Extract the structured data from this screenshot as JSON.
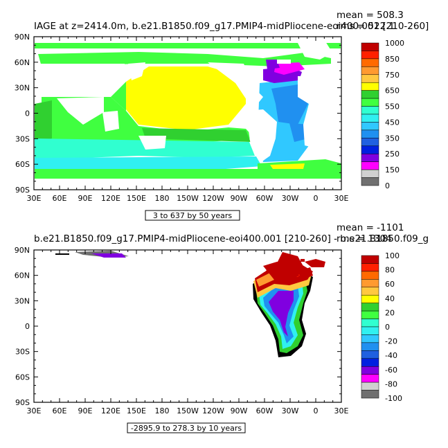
{
  "chart_data": [
    {
      "type": "heatmap",
      "title": "IAGE at z=2414.0m, b.e21.B1850.f09_g17.PMIP4-midPliocene-eoi400.001 [210-260]",
      "stats": {
        "mean": "mean = 508.3",
        "rms": "rms = 522.1"
      },
      "subtitle": "3 to 637 by 50 years",
      "xticks": [
        "30E",
        "60E",
        "90E",
        "120E",
        "150E",
        "180",
        "150W",
        "120W",
        "90W",
        "60W",
        "30W",
        "0",
        "30E"
      ],
      "yticks": [
        "90N",
        "60N",
        "30N",
        "0",
        "30S",
        "60S",
        "90S"
      ],
      "colorbar": {
        "labels": [
          "1000",
          "850",
          "750",
          "650",
          "550",
          "450",
          "350",
          "250",
          "150",
          "0"
        ],
        "colors": [
          "#c00000",
          "#ff2000",
          "#ff6a00",
          "#ff9a30",
          "#ffc840",
          "#ffff00",
          "#30d030",
          "#40ff40",
          "#30ffd0",
          "#30f0f0",
          "#30c8ff",
          "#2090f0",
          "#2060e0",
          "#0020e0",
          "#8000e0",
          "#ff00ff",
          "#d0d0d0",
          "#707070"
        ]
      }
    },
    {
      "type": "heatmap",
      "title": "b.e21.B1850.f09_g17.PMIP4-midPliocene-eoi400.001 [210-260] - b.e21.B1850.f09_g",
      "stats": {
        "mean": "mean = -1101",
        "rms": "rms = 1304"
      },
      "subtitle": "-2895.9 to 278.3 by 10 years",
      "xticks": [
        "30E",
        "60E",
        "90E",
        "120E",
        "150E",
        "180",
        "150W",
        "120W",
        "90W",
        "60W",
        "30W",
        "0",
        "30E"
      ],
      "yticks": [
        "90N",
        "60N",
        "30N",
        "0",
        "30S",
        "60S",
        "90S"
      ],
      "colorbar": {
        "labels": [
          "100",
          "80",
          "60",
          "40",
          "20",
          "0",
          "-20",
          "-40",
          "-60",
          "-80",
          "-100"
        ],
        "colors": [
          "#c00000",
          "#ff2000",
          "#ff6a00",
          "#ff9a30",
          "#ffc840",
          "#ffff00",
          "#30d030",
          "#40ff40",
          "#30ffd0",
          "#30f0f0",
          "#30c8ff",
          "#2090f0",
          "#2060e0",
          "#0020e0",
          "#8000e0",
          "#ff00ff",
          "#d0d0d0",
          "#707070"
        ]
      }
    }
  ]
}
